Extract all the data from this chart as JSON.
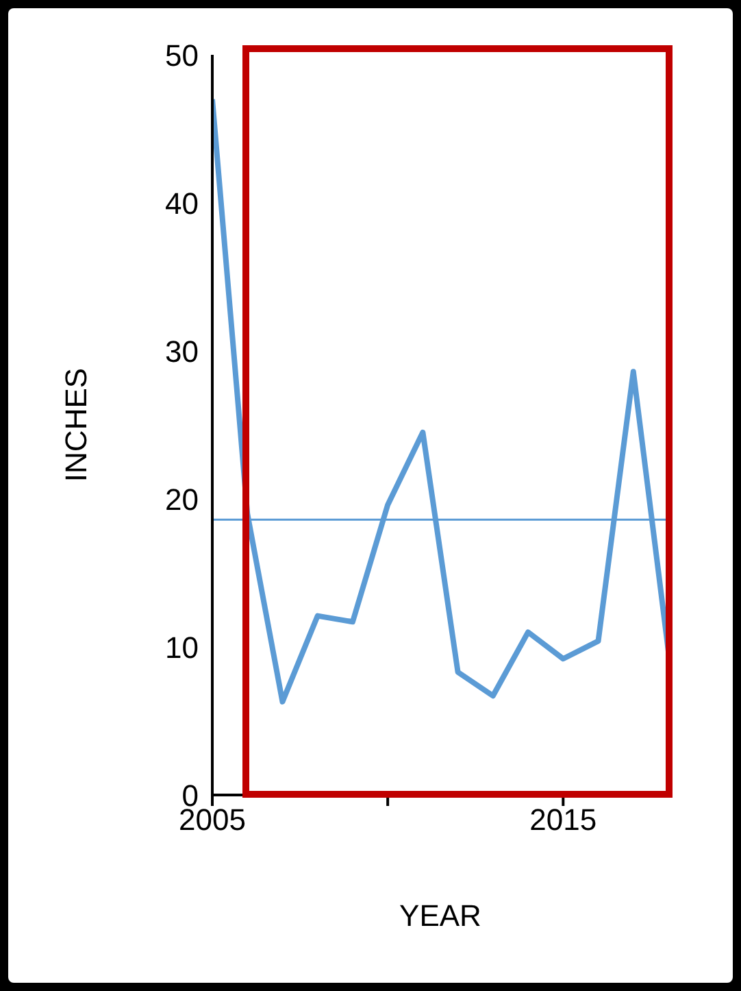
{
  "chart_data": {
    "type": "line",
    "xlabel": "YEAR",
    "ylabel": "INCHES",
    "x": [
      2005,
      2006,
      2007,
      2008,
      2009,
      2010,
      2011,
      2012,
      2013,
      2014,
      2015,
      2016,
      2017,
      2018
    ],
    "series": [
      {
        "color": "#5b9bd5",
        "values": [
          47,
          19,
          6.3,
          12.1,
          11.7,
          19.6,
          24.5,
          8.3,
          6.7,
          11,
          9.2,
          10.4,
          28.6,
          9.7
        ]
      }
    ],
    "xlim": [
      2005,
      2018
    ],
    "xticks": [
      2005,
      {
        "value": 2010,
        "label": null
      },
      2015
    ],
    "ylim": [
      0,
      50
    ],
    "yticks": [
      0,
      10,
      20,
      30,
      40,
      50
    ],
    "ref_lines": [
      {
        "axis": "y",
        "value": 18.6,
        "color": "#5b9bd5"
      }
    ],
    "marker": "none",
    "line_style": "solid",
    "legend": false,
    "grid": false
  }
}
